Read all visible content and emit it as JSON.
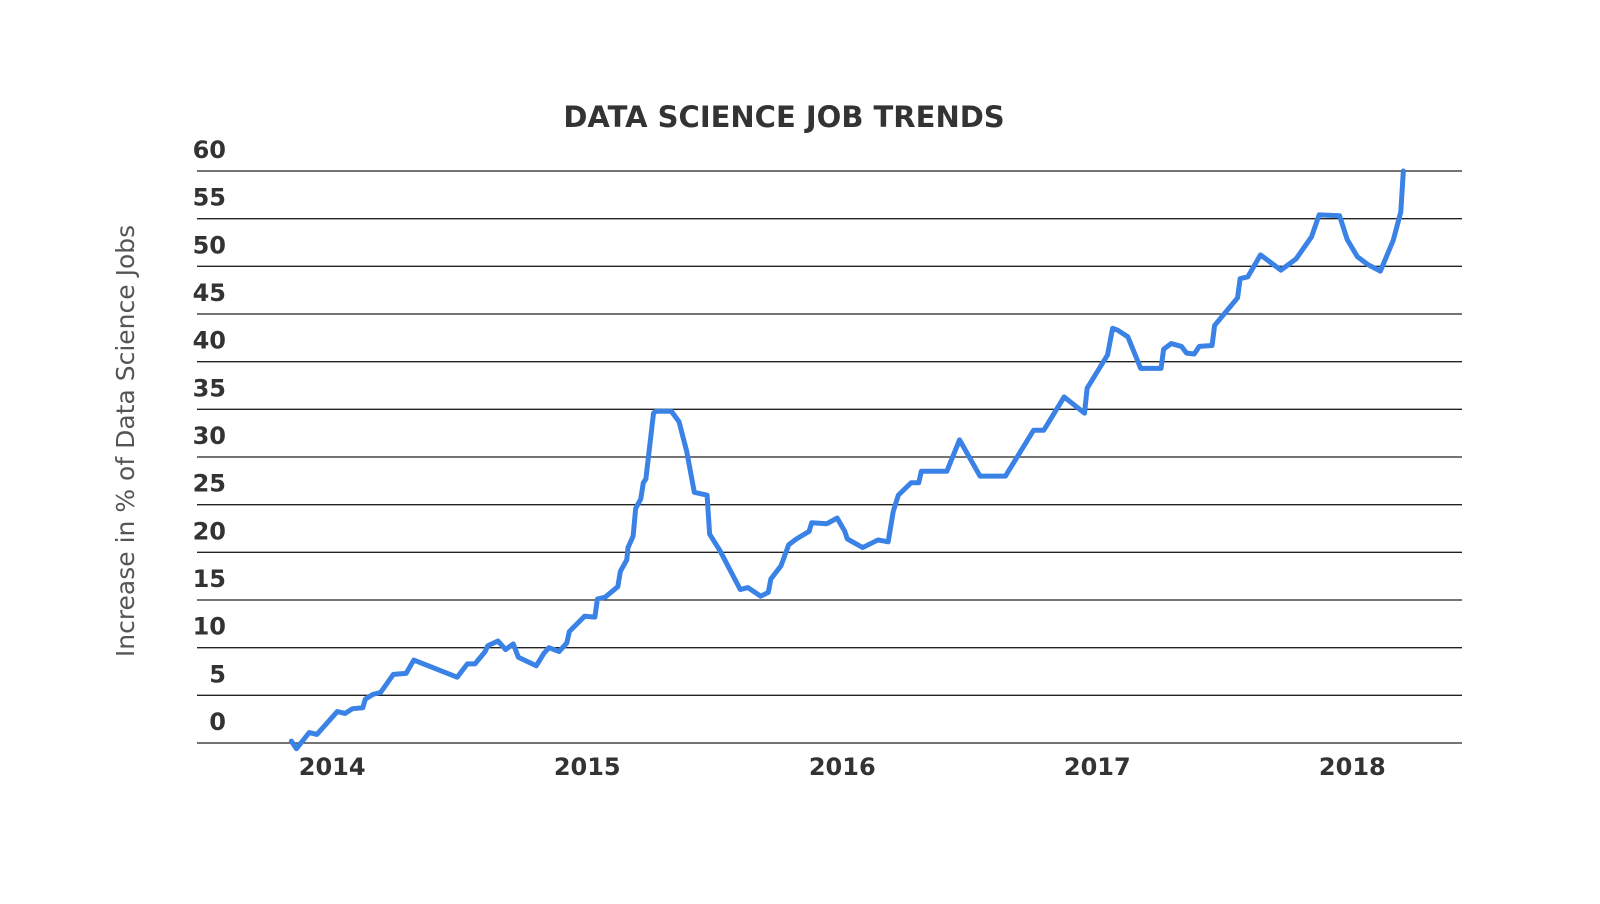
{
  "chart_data": {
    "type": "line",
    "title": "DATA SCIENCE JOB TRENDS",
    "y_label": "Increase in % of Data Science Jobs",
    "xlim": [
      2013.47,
      2018.43
    ],
    "xticks": [
      2014,
      2015,
      2016,
      2017,
      2018
    ],
    "ylim": [
      0,
      60
    ],
    "yticks": [
      0,
      5,
      10,
      15,
      20,
      25,
      30,
      35,
      40,
      45,
      50,
      55,
      60
    ],
    "grid": true,
    "series": [
      {
        "color": "#3b82e6",
        "x": [
          2013.84,
          2013.86,
          2013.91,
          2013.94,
          2014.02,
          2014.05,
          2014.08,
          2014.12,
          2014.13,
          2014.16,
          2014.19,
          2014.24,
          2014.29,
          2014.32,
          2014.49,
          2014.53,
          2014.56,
          2014.6,
          2014.61,
          2014.65,
          2014.68,
          2014.71,
          2014.73,
          2014.8,
          2014.83,
          2014.85,
          2014.89,
          2014.92,
          2014.93,
          2014.99,
          2015.03,
          2015.04,
          2015.07,
          2015.12,
          2015.13,
          2015.155,
          2015.16,
          2015.18,
          2015.19,
          2015.21,
          2015.22,
          2015.23,
          2015.26,
          2015.27,
          2015.33,
          2015.36,
          2015.39,
          2015.42,
          2015.47,
          2015.48,
          2015.52,
          2015.6,
          2015.63,
          2015.68,
          2015.71,
          2015.72,
          2015.76,
          2015.79,
          2015.82,
          2015.87,
          2015.88,
          2015.94,
          2015.98,
          2016.01,
          2016.02,
          2016.08,
          2016.14,
          2016.18,
          2016.2,
          2016.22,
          2016.27,
          2016.3,
          2016.31,
          2016.41,
          2016.46,
          2016.54,
          2016.64,
          2016.75,
          2016.79,
          2016.87,
          2016.95,
          2016.96,
          2017.04,
          2017.06,
          2017.08,
          2017.12,
          2017.17,
          2017.25,
          2017.26,
          2017.29,
          2017.33,
          2017.35,
          2017.38,
          2017.4,
          2017.45,
          2017.46,
          2017.55,
          2017.56,
          2017.59,
          2017.64,
          2017.72,
          2017.78,
          2017.84,
          2017.87,
          2017.95,
          2017.98,
          2018.02,
          2018.06,
          2018.11,
          2018.16,
          2018.19,
          2018.2
        ],
        "values": [
          0.2,
          -0.6,
          1.1,
          0.9,
          3.3,
          3.1,
          3.6,
          3.7,
          4.6,
          5.1,
          5.3,
          7.2,
          7.3,
          8.7,
          6.9,
          8.3,
          8.3,
          9.6,
          10.2,
          10.7,
          9.8,
          10.4,
          9.0,
          8.1,
          9.4,
          10.0,
          9.6,
          10.5,
          11.7,
          13.3,
          13.2,
          15.1,
          15.3,
          16.4,
          18.0,
          19.2,
          20.5,
          21.7,
          24.6,
          25.6,
          27.3,
          27.7,
          34.6,
          34.8,
          34.8,
          33.7,
          30.6,
          26.3,
          26.0,
          21.9,
          20.2,
          16.1,
          16.3,
          15.4,
          15.8,
          17.2,
          18.6,
          20.8,
          21.4,
          22.2,
          23.1,
          23.0,
          23.6,
          22.2,
          21.4,
          20.5,
          21.3,
          21.1,
          24.3,
          26.0,
          27.3,
          27.3,
          28.5,
          28.5,
          31.8,
          28.0,
          28.0,
          32.8,
          32.8,
          36.3,
          34.6,
          37.2,
          40.7,
          43.5,
          43.3,
          42.6,
          39.3,
          39.3,
          41.3,
          41.9,
          41.6,
          40.9,
          40.8,
          41.6,
          41.7,
          43.8,
          46.7,
          48.7,
          48.9,
          51.2,
          49.6,
          50.8,
          53.1,
          55.4,
          55.3,
          52.8,
          51.0,
          50.2,
          49.5,
          52.7,
          55.7,
          60.0
        ]
      }
    ]
  }
}
